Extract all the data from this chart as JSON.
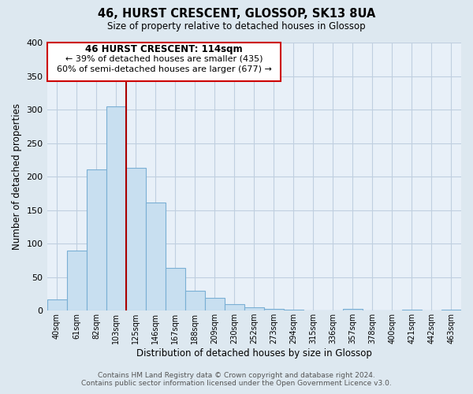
{
  "title": "46, HURST CRESCENT, GLOSSOP, SK13 8UA",
  "subtitle": "Size of property relative to detached houses in Glossop",
  "xlabel": "Distribution of detached houses by size in Glossop",
  "ylabel": "Number of detached properties",
  "bar_labels": [
    "40sqm",
    "61sqm",
    "82sqm",
    "103sqm",
    "125sqm",
    "146sqm",
    "167sqm",
    "188sqm",
    "209sqm",
    "230sqm",
    "252sqm",
    "273sqm",
    "294sqm",
    "315sqm",
    "336sqm",
    "357sqm",
    "378sqm",
    "400sqm",
    "421sqm",
    "442sqm",
    "463sqm"
  ],
  "bar_values": [
    17,
    89,
    211,
    305,
    213,
    161,
    64,
    30,
    19,
    10,
    5,
    2,
    1,
    0,
    0,
    2,
    0,
    0,
    1,
    0,
    1
  ],
  "bar_color": "#c8dff0",
  "bar_edge_color": "#7aafd4",
  "ylim": [
    0,
    400
  ],
  "yticks": [
    0,
    50,
    100,
    150,
    200,
    250,
    300,
    350,
    400
  ],
  "property_line_color": "#aa0000",
  "annotation_title": "46 HURST CRESCENT: 114sqm",
  "annotation_line1": "← 39% of detached houses are smaller (435)",
  "annotation_line2": "60% of semi-detached houses are larger (677) →",
  "footer_line1": "Contains HM Land Registry data © Crown copyright and database right 2024.",
  "footer_line2": "Contains public sector information licensed under the Open Government Licence v3.0.",
  "background_color": "#dde8f0",
  "plot_bg_color": "#e8f0f8",
  "grid_color": "#c0cfe0"
}
